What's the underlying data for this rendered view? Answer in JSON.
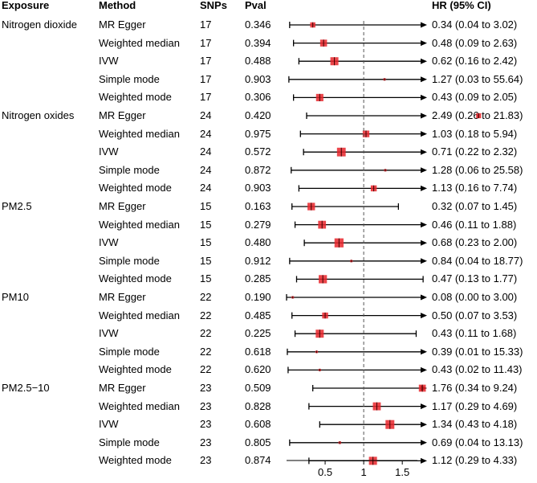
{
  "headers": {
    "exposure": "Exposure",
    "method": "Method",
    "snps": "SNPs",
    "pval": "Pval",
    "hr": "HR (95% CI)"
  },
  "groups": [
    {
      "exposure": "Nitrogen dioxide",
      "rows": [
        {
          "method": "MR Egger",
          "snps": "17",
          "pval": "0.346",
          "hr_text": "0.34 (0.04 to 3.02)",
          "hr": 0.34,
          "lo": 0.04,
          "hi": 3.02
        },
        {
          "method": "Weighted median",
          "snps": "17",
          "pval": "0.394",
          "hr_text": "0.48 (0.09 to 2.63)",
          "hr": 0.48,
          "lo": 0.09,
          "hi": 2.63
        },
        {
          "method": "IVW",
          "snps": "17",
          "pval": "0.488",
          "hr_text": "0.62 (0.16 to 2.42)",
          "hr": 0.62,
          "lo": 0.16,
          "hi": 2.42
        },
        {
          "method": "Simple mode",
          "snps": "17",
          "pval": "0.903",
          "hr_text": "1.27 (0.03 to 55.64)",
          "hr": 1.27,
          "lo": 0.03,
          "hi": 55.64
        },
        {
          "method": "Weighted mode",
          "snps": "17",
          "pval": "0.306",
          "hr_text": "0.43 (0.09 to 2.05)",
          "hr": 0.43,
          "lo": 0.09,
          "hi": 2.05
        }
      ]
    },
    {
      "exposure": "Nitrogen oxides",
      "rows": [
        {
          "method": "MR Egger",
          "snps": "24",
          "pval": "0.420",
          "hr_text": "2.49 (0.26 to 21.83)",
          "hr": 2.49,
          "lo": 0.26,
          "hi": 21.83
        },
        {
          "method": "Weighted median",
          "snps": "24",
          "pval": "0.975",
          "hr_text": "1.03 (0.18 to 5.94)",
          "hr": 1.03,
          "lo": 0.18,
          "hi": 5.94
        },
        {
          "method": "IVW",
          "snps": "24",
          "pval": "0.572",
          "hr_text": "0.71 (0.22 to 2.32)",
          "hr": 0.71,
          "lo": 0.22,
          "hi": 2.32
        },
        {
          "method": "Simple mode",
          "snps": "24",
          "pval": "0.872",
          "hr_text": "1.28 (0.06 to 25.58)",
          "hr": 1.28,
          "lo": 0.06,
          "hi": 25.58
        },
        {
          "method": "Weighted mode",
          "snps": "24",
          "pval": "0.903",
          "hr_text": "1.13 (0.16 to 7.74)",
          "hr": 1.13,
          "lo": 0.16,
          "hi": 7.74
        }
      ]
    },
    {
      "exposure": "PM2.5",
      "rows": [
        {
          "method": "MR Egger",
          "snps": "15",
          "pval": "0.163",
          "hr_text": "0.32 (0.07 to 1.45)",
          "hr": 0.32,
          "lo": 0.07,
          "hi": 1.45
        },
        {
          "method": "Weighted median",
          "snps": "15",
          "pval": "0.279",
          "hr_text": "0.46 (0.11 to 1.88)",
          "hr": 0.46,
          "lo": 0.11,
          "hi": 1.88
        },
        {
          "method": "IVW",
          "snps": "15",
          "pval": "0.480",
          "hr_text": "0.68 (0.23 to 2.00)",
          "hr": 0.68,
          "lo": 0.23,
          "hi": 2.0
        },
        {
          "method": "Simple mode",
          "snps": "15",
          "pval": "0.912",
          "hr_text": "0.84 (0.04 to 18.77)",
          "hr": 0.84,
          "lo": 0.04,
          "hi": 18.77
        },
        {
          "method": "Weighted mode",
          "snps": "15",
          "pval": "0.285",
          "hr_text": "0.47 (0.13 to 1.77)",
          "hr": 0.47,
          "lo": 0.13,
          "hi": 1.77
        }
      ]
    },
    {
      "exposure": "PM10",
      "rows": [
        {
          "method": "MR Egger",
          "snps": "22",
          "pval": "0.190",
          "hr_text": "0.08 (0.00 to 3.00)",
          "hr": 0.08,
          "lo": 0.0,
          "hi": 3.0
        },
        {
          "method": "Weighted median",
          "snps": "22",
          "pval": "0.485",
          "hr_text": "0.50 (0.07 to 3.53)",
          "hr": 0.5,
          "lo": 0.07,
          "hi": 3.53
        },
        {
          "method": "IVW",
          "snps": "22",
          "pval": "0.225",
          "hr_text": "0.43 (0.11 to 1.68)",
          "hr": 0.43,
          "lo": 0.11,
          "hi": 1.68
        },
        {
          "method": "Simple mode",
          "snps": "22",
          "pval": "0.618",
          "hr_text": "0.39 (0.01 to 15.33)",
          "hr": 0.39,
          "lo": 0.01,
          "hi": 15.33
        },
        {
          "method": "Weighted mode",
          "snps": "22",
          "pval": "0.620",
          "hr_text": "0.43 (0.02 to 11.43)",
          "hr": 0.43,
          "lo": 0.02,
          "hi": 11.43
        }
      ]
    },
    {
      "exposure": "PM2.5−10",
      "rows": [
        {
          "method": "MR Egger",
          "snps": "23",
          "pval": "0.509",
          "hr_text": "1.76 (0.34 to 9.24)",
          "hr": 1.76,
          "lo": 0.34,
          "hi": 9.24
        },
        {
          "method": "Weighted median",
          "snps": "23",
          "pval": "0.828",
          "hr_text": "1.17 (0.29 to 4.69)",
          "hr": 1.17,
          "lo": 0.29,
          "hi": 4.69
        },
        {
          "method": "IVW",
          "snps": "23",
          "pval": "0.608",
          "hr_text": "1.34 (0.43 to 4.18)",
          "hr": 1.34,
          "lo": 0.43,
          "hi": 4.18
        },
        {
          "method": "Simple mode",
          "snps": "23",
          "pval": "0.805",
          "hr_text": "0.69 (0.04 to 13.13)",
          "hr": 0.69,
          "lo": 0.04,
          "hi": 13.13
        },
        {
          "method": "Weighted mode",
          "snps": "23",
          "pval": "0.874",
          "hr_text": "1.12 (0.29 to 4.33)",
          "hr": 1.12,
          "lo": 0.29,
          "hi": 4.33
        }
      ]
    }
  ],
  "chart_data": {
    "type": "forest",
    "title": "",
    "xlabel": "",
    "ylabel": "",
    "xlim": [
      0,
      1.8
    ],
    "x_ticks": [
      0.5,
      1,
      1.5
    ],
    "x_tick_labels": [
      "0.5",
      "1",
      "1.5"
    ],
    "reference_line": 1,
    "columns": [
      "Exposure",
      "Method",
      "SNPs",
      "Pval",
      "HR (95% CI)"
    ],
    "marker_color": "#e8262b",
    "ci_color": "#000000",
    "series": [
      {
        "name": "Nitrogen dioxide",
        "hr": [
          0.34,
          0.48,
          0.62,
          1.27,
          0.43
        ],
        "lo": [
          0.04,
          0.09,
          0.16,
          0.03,
          0.09
        ],
        "hi": [
          3.02,
          2.63,
          2.42,
          55.64,
          2.05
        ]
      },
      {
        "name": "Nitrogen oxides",
        "hr": [
          2.49,
          1.03,
          0.71,
          1.28,
          1.13
        ],
        "lo": [
          0.26,
          0.18,
          0.22,
          0.06,
          0.16
        ],
        "hi": [
          21.83,
          5.94,
          2.32,
          25.58,
          7.74
        ]
      },
      {
        "name": "PM2.5",
        "hr": [
          0.32,
          0.46,
          0.68,
          0.84,
          0.47
        ],
        "lo": [
          0.07,
          0.11,
          0.23,
          0.04,
          0.13
        ],
        "hi": [
          1.45,
          1.88,
          2.0,
          18.77,
          1.77
        ]
      },
      {
        "name": "PM10",
        "hr": [
          0.08,
          0.5,
          0.43,
          0.39,
          0.43
        ],
        "lo": [
          0.0,
          0.07,
          0.11,
          0.01,
          0.02
        ],
        "hi": [
          3.0,
          3.53,
          1.68,
          15.33,
          11.43
        ]
      },
      {
        "name": "PM2.5−10",
        "hr": [
          1.76,
          1.17,
          1.34,
          0.69,
          1.12
        ],
        "lo": [
          0.34,
          0.29,
          0.43,
          0.04,
          0.29
        ],
        "hi": [
          9.24,
          4.69,
          4.18,
          13.13,
          4.33
        ]
      }
    ],
    "methods": [
      "MR Egger",
      "Weighted median",
      "IVW",
      "Simple mode",
      "Weighted mode"
    ]
  }
}
